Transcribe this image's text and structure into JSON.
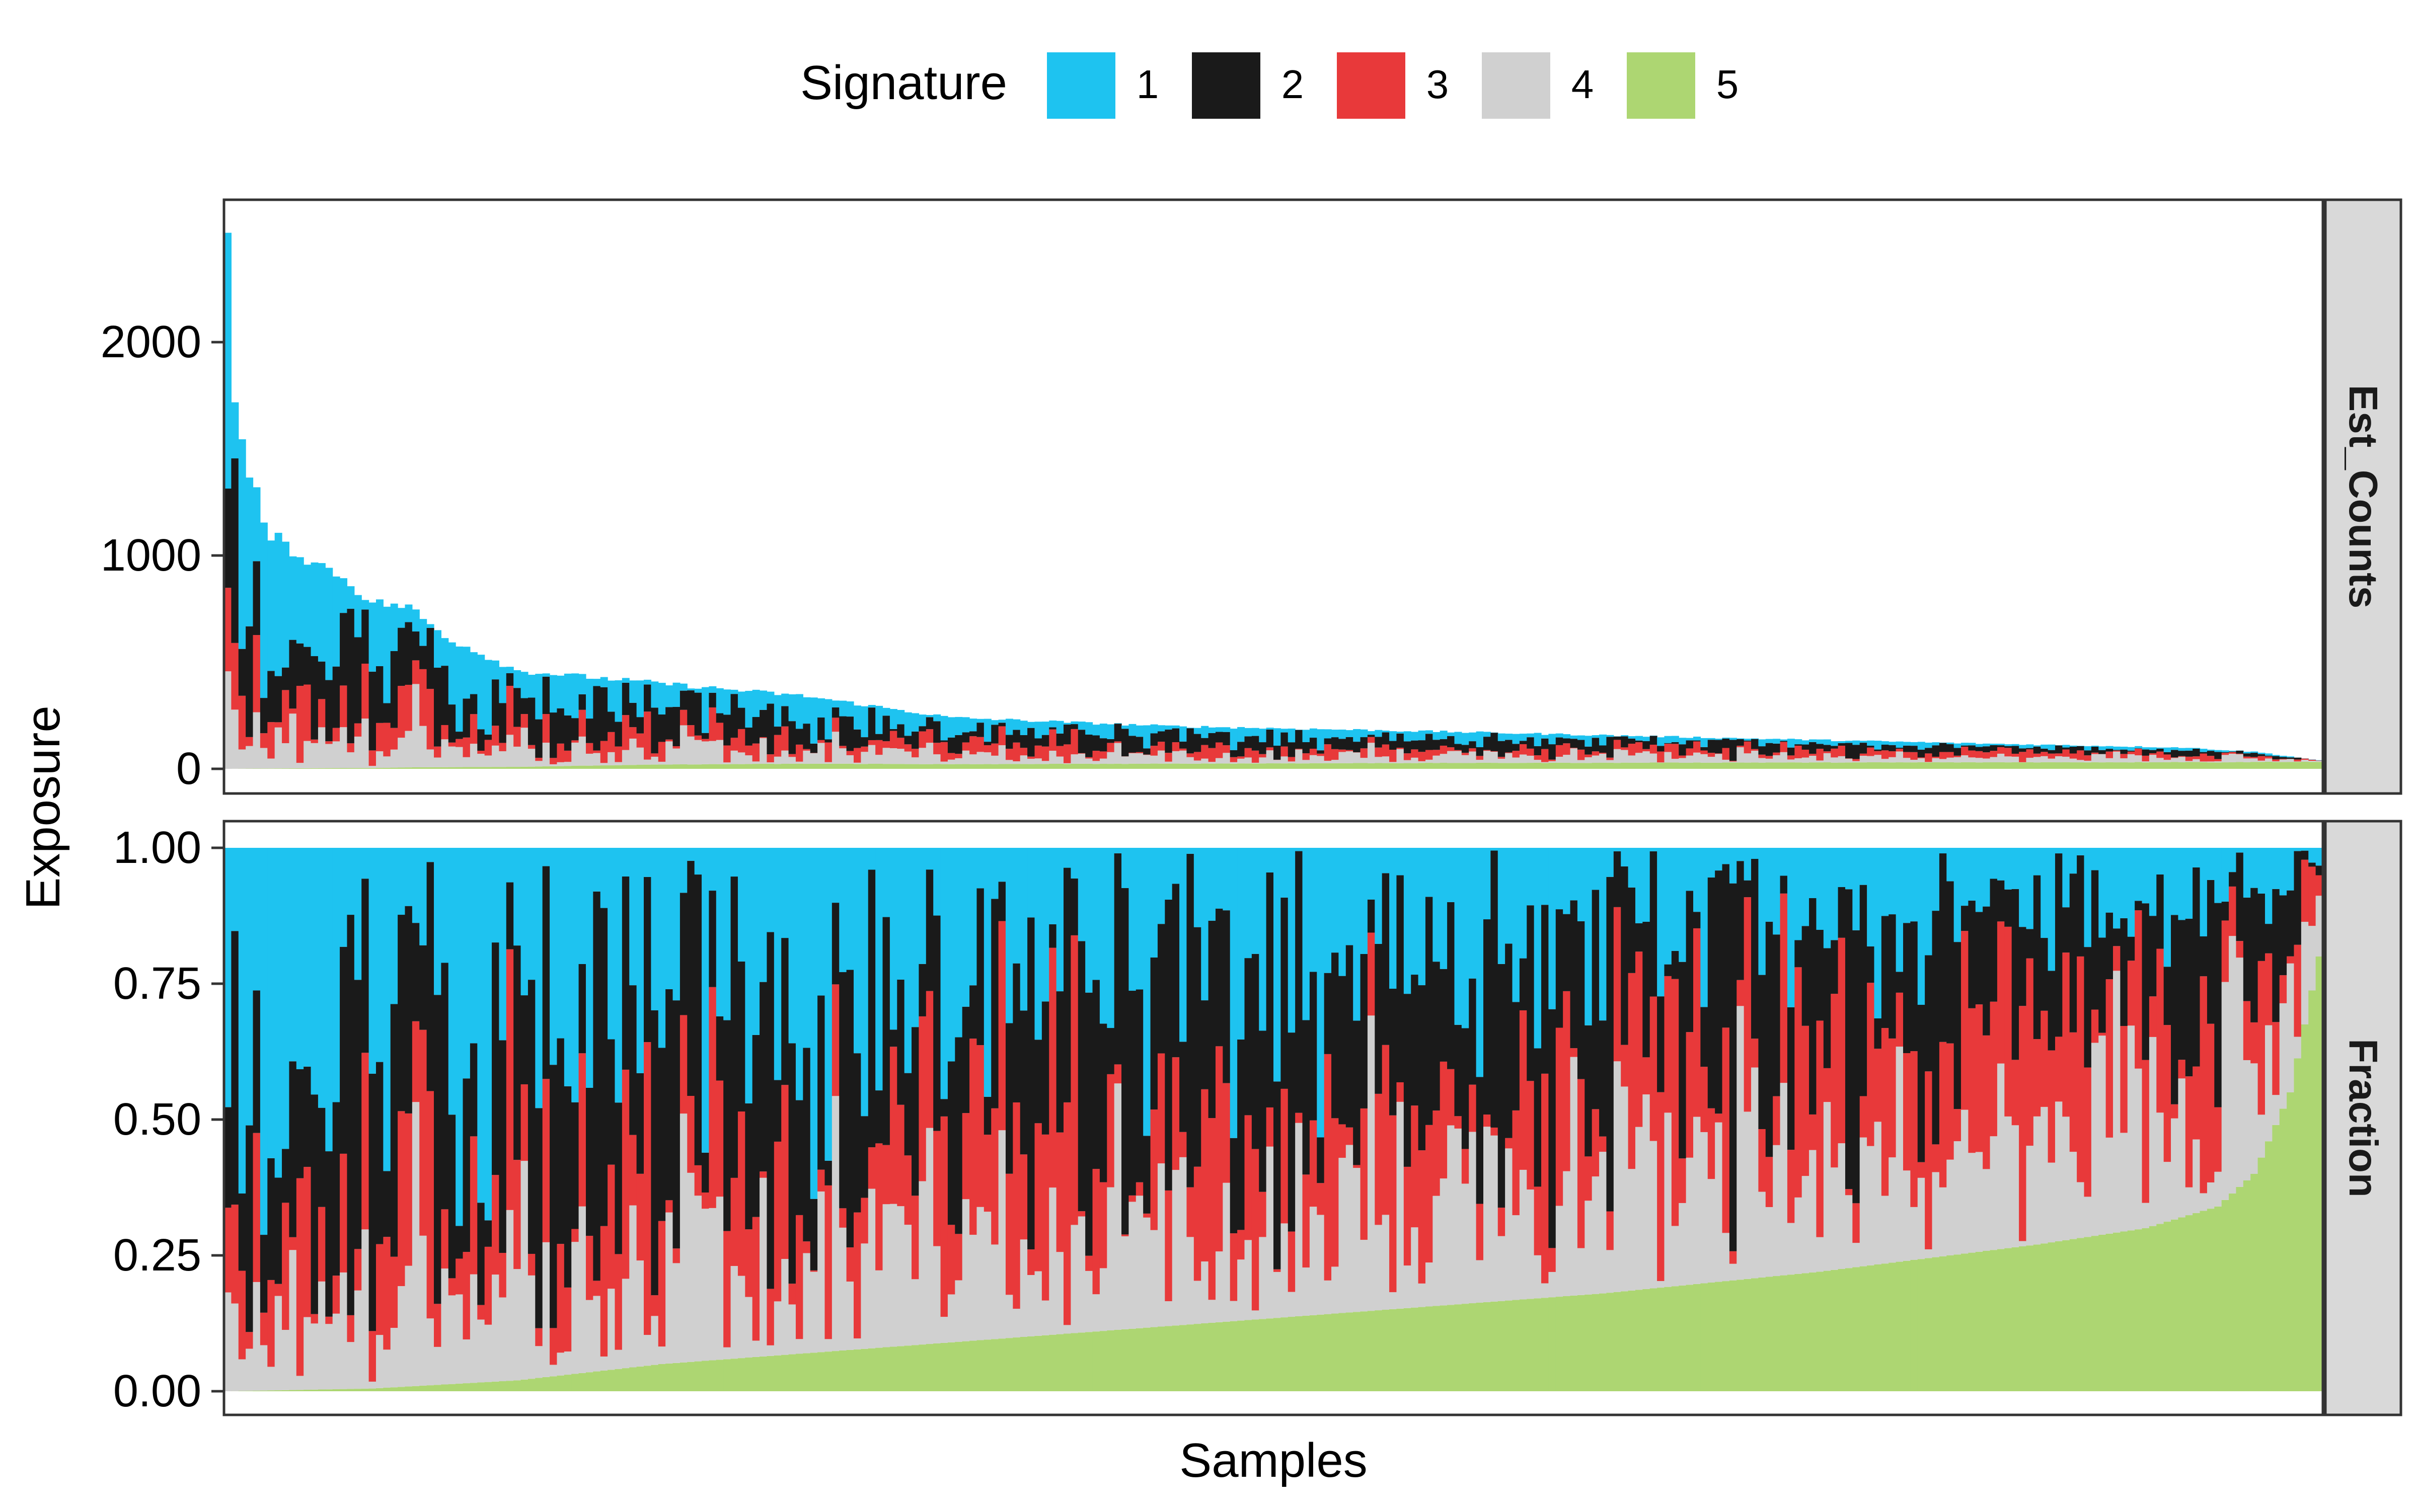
{
  "legend": {
    "title": "Signature",
    "entries": [
      {
        "label": "1",
        "color": "#1EC3F0"
      },
      {
        "label": "2",
        "color": "#1A1A1A"
      },
      {
        "label": "3",
        "color": "#E8393A"
      },
      {
        "label": "4",
        "color": "#D0D0D0"
      },
      {
        "label": "5",
        "color": "#ADD672"
      }
    ]
  },
  "axes": {
    "xlabel": "Samples",
    "ylabel": "Exposure"
  },
  "chart_data": [
    {
      "type": "bar",
      "stacked": true,
      "facet_label": "Est_Counts",
      "ylim": [
        0,
        2600
      ],
      "yticks": [
        0,
        1000,
        2000
      ],
      "ytick_labels": [
        "0",
        "1000",
        "2000"
      ],
      "grid": false,
      "legend_position": "top",
      "n_samples": 290,
      "series_names": [
        "1",
        "2",
        "3",
        "4",
        "5"
      ],
      "totals_profile": {
        "description_of_values": "Approximate total exposure per sample, sorted descending (representative samples)",
        "sample_index": [
          0,
          1,
          2,
          3,
          4,
          5,
          6,
          8,
          10,
          15,
          20,
          25,
          30,
          40,
          50,
          60,
          80,
          100,
          130,
          160,
          200,
          240,
          270,
          280,
          289
        ],
        "total": [
          2550,
          1700,
          1540,
          1360,
          1290,
          1130,
          1100,
          1050,
          1000,
          920,
          780,
          760,
          620,
          460,
          430,
          400,
          340,
          240,
          200,
          180,
          150,
          120,
          100,
          80,
          40
        ]
      }
    },
    {
      "type": "bar",
      "stacked": true,
      "facet_label": "Fraction",
      "ylim": [
        0,
        1
      ],
      "yticks": [
        0,
        0.25,
        0.5,
        0.75,
        1.0
      ],
      "ytick_labels": [
        "0.00",
        "0.25",
        "0.50",
        "0.75",
        "1.00"
      ],
      "grid": false,
      "n_samples": 290,
      "series_names": [
        "1",
        "2",
        "3",
        "4",
        "5"
      ],
      "signature5_profile": {
        "description_of_values": "Approximate fraction of signature 5 per sample, sorted ascending (representative samples)",
        "sample_index": [
          0,
          20,
          40,
          60,
          80,
          100,
          130,
          160,
          190,
          220,
          250,
          265,
          275,
          280,
          285,
          289
        ],
        "fraction": [
          0.0,
          0.005,
          0.02,
          0.05,
          0.07,
          0.09,
          0.12,
          0.15,
          0.18,
          0.22,
          0.27,
          0.3,
          0.34,
          0.4,
          0.55,
          0.8
        ]
      }
    }
  ]
}
